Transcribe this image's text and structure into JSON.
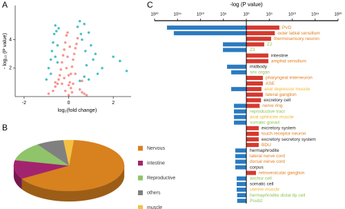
{
  "chart_data": [
    {
      "type": "scatter",
      "panel_label": "A",
      "xlabel": "log₂(fold change)",
      "ylabel": "- log₁₀ (P value)",
      "xlim": [
        -2.4,
        2.8
      ],
      "ylim": [
        0,
        6.4
      ],
      "xticks": [
        -2,
        0,
        2
      ],
      "yticks": [
        2,
        4
      ],
      "series": [
        {
          "color": "#f4837a",
          "x": [
            -0.9,
            -0.7,
            -0.6,
            -0.5,
            -0.45,
            -0.4,
            -0.35,
            -0.3,
            -0.25,
            -0.2,
            -0.15,
            -0.1,
            -0.05,
            0,
            0.05,
            0.1,
            0.15,
            0.2,
            0.25,
            0.3,
            0.35,
            0.4,
            0.5,
            0.6,
            0.7,
            0.8,
            -0.3,
            -0.2,
            -0.1,
            0,
            0.1,
            0.2,
            0.3,
            -0.15,
            0.15,
            -0.05,
            0.05,
            -0.6,
            0.6,
            0
          ],
          "values": [
            0.2,
            0.4,
            0.7,
            0.9,
            1.2,
            1.5,
            1.9,
            2.4,
            2.9,
            3.3,
            3.8,
            4.3,
            4.5,
            0.8,
            1.0,
            1.6,
            2.1,
            2.6,
            3.0,
            3.4,
            3.7,
            4.1,
            0.5,
            0.3,
            0.2,
            0.1,
            0.9,
            1.3,
            2.0,
            1.5,
            0.6,
            0.9,
            1.6,
            0.4,
            0.3,
            2.8,
            3.5,
            1.0,
            1.1,
            0.1
          ]
        },
        {
          "color": "#2bb5b8",
          "x": [
            -1.0,
            -0.9,
            -0.8,
            -0.75,
            -0.7,
            -0.65,
            -0.6,
            -0.55,
            -0.5,
            -0.45,
            -0.8,
            -0.6,
            0.4,
            0.5,
            0.55,
            0.6,
            0.7,
            0.75,
            0.8,
            0.9,
            1.0,
            1.1,
            1.2,
            1.3,
            1.5,
            0.5,
            0.7,
            0.9,
            2.0,
            2.3,
            2.6,
            -0.5
          ],
          "values": [
            1.2,
            2.0,
            2.6,
            3.2,
            3.8,
            4.4,
            5.0,
            4.6,
            3.6,
            4.8,
            1.6,
            2.8,
            4.9,
            5.3,
            4.4,
            4.0,
            5.1,
            3.2,
            2.2,
            4.5,
            3.6,
            2.6,
            3.0,
            1.6,
            2.0,
            1.1,
            1.4,
            1.2,
            2.8,
            2.5,
            1.8,
            2.4
          ]
        }
      ]
    },
    {
      "type": "pie",
      "panel_label": "B",
      "categories": [
        "Nervous",
        "intestine",
        "Reproductive",
        "others",
        "muscle"
      ],
      "values": [
        65,
        12,
        12,
        8,
        3
      ],
      "colors": [
        "#d8811f",
        "#a3246e",
        "#8fc46a",
        "#808080",
        "#f2c043"
      ]
    },
    {
      "type": "bar",
      "panel_label": "C",
      "title": "-log (P value)",
      "xlim": [
        -20,
        20
      ],
      "xticks": [
        {
          "value": -20,
          "label": "10²⁰"
        },
        {
          "value": -15,
          "label": "10¹⁵"
        },
        {
          "value": -10,
          "label": "10¹⁰"
        },
        {
          "value": -5,
          "label": "10⁵"
        },
        {
          "value": 0,
          "label": "10⁰"
        },
        {
          "value": 5,
          "label": "10⁵"
        },
        {
          "value": 10,
          "label": "10¹⁰"
        },
        {
          "value": 15,
          "label": "10¹⁵"
        },
        {
          "value": 20,
          "label": "10²⁰"
        }
      ],
      "categories": [
        "PVD",
        "outer labial sensillum",
        "thermosensory neuron",
        "Z2",
        "Z3",
        "intestine",
        "amphid sensillum",
        "midbody",
        "sex organ",
        "pharyngeal interneuron",
        "ASE",
        "anal depressor muscle",
        "lateral ganglion",
        "excretory cell",
        "nerve ring",
        "reproductive tract",
        "anal sphincter muscle",
        "somatic gonad",
        "excretory system",
        "touch receptor neuron",
        "excretory secretory system",
        "BDU",
        "hermaphrodite",
        "lateral nerve cord",
        "dorsal nerve cord",
        "corpus",
        "retrovesicular ganglion",
        "anchor cell",
        "somatic cell",
        "uterine muscle",
        "hermaphrodite distal tip cell",
        "Psub2"
      ],
      "category_colors": [
        "#e07b1a",
        "#e07b1a",
        "#e07b1a",
        "#8cc152",
        "#8cc152",
        "#222222",
        "#e07b1a",
        "#222222",
        "#8cc152",
        "#e07b1a",
        "#e07b1a",
        "#f0b428",
        "#e07b1a",
        "#222222",
        "#e07b1a",
        "#8cc152",
        "#f0b428",
        "#8cc152",
        "#222222",
        "#e07b1a",
        "#222222",
        "#e07b1a",
        "#222222",
        "#e07b1a",
        "#e07b1a",
        "#222222",
        "#e07b1a",
        "#8cc152",
        "#222222",
        "#f0b428",
        "#8cc152",
        "#8cc152"
      ],
      "series": [
        {
          "color": "#2b7bc0",
          "values": [
            -17.3,
            -15.8,
            null,
            -5.1,
            -5.1,
            null,
            null,
            -4.2,
            -3.3,
            null,
            null,
            -3.3,
            null,
            null,
            -2.7,
            -2.7,
            -2.7,
            -2.7,
            null,
            null,
            null,
            null,
            -2.4,
            -2.4,
            -2.4,
            -2.4,
            null,
            -2.1,
            -2.1,
            -2.1,
            -2.0,
            -2.0
          ]
        },
        {
          "color": "#d63a2f",
          "values": [
            7.2,
            6.2,
            5.4,
            3.9,
            null,
            4.8,
            4.8,
            null,
            null,
            3.6,
            3.6,
            3.3,
            3.6,
            3.2,
            2.9,
            null,
            null,
            null,
            2.7,
            2.7,
            2.7,
            2.7,
            null,
            null,
            null,
            null,
            2.1,
            null,
            null,
            null,
            null,
            null
          ]
        }
      ]
    }
  ]
}
